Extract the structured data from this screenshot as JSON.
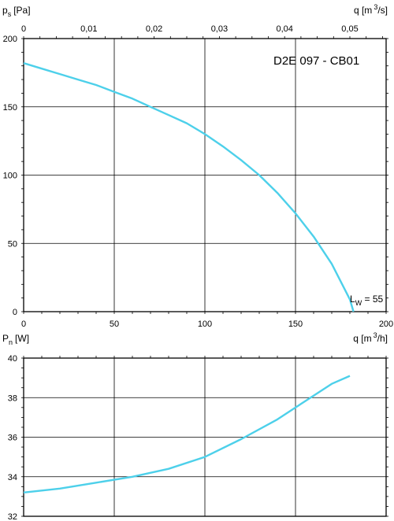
{
  "chart_data": [
    {
      "type": "line",
      "title": "D2E 097 - CB01",
      "ylabel": "p",
      "ylabel_sub": "s",
      "ylabel_unit": "[Pa]",
      "xlabel": "q [m",
      "xlabel_sup": "3",
      "xlabel_unit": "/h]",
      "top_xlabel": "q [m",
      "top_xlabel_sup": "3",
      "top_xlabel_unit": "/s]",
      "xlim": [
        0,
        200
      ],
      "ylim": [
        0,
        200
      ],
      "xticks": [
        "0",
        "50",
        "100",
        "150",
        "200"
      ],
      "yticks": [
        "0",
        "50",
        "100",
        "150",
        "200"
      ],
      "top_xticks": [
        "0",
        "0,01",
        "0,02",
        "0,03",
        "0,04",
        "0,05"
      ],
      "annotation": {
        "text": "L",
        "sub": "W",
        "rest": " = 55"
      },
      "line_color": "#4dd0ea",
      "grid": true,
      "series": [
        {
          "x": [
            0,
            10,
            20,
            30,
            40,
            50,
            60,
            70,
            80,
            90,
            100,
            110,
            120,
            130,
            140,
            150,
            160,
            170,
            180,
            182
          ],
          "y": [
            182,
            178,
            174,
            170,
            166,
            161,
            156,
            150,
            144,
            138,
            130,
            121,
            111,
            100,
            87,
            72,
            55,
            35,
            9,
            0
          ]
        }
      ]
    },
    {
      "type": "line",
      "ylabel": "P",
      "ylabel_sub": "n",
      "ylabel_unit": "[W]",
      "xlim": [
        0,
        200
      ],
      "ylim": [
        32,
        40
      ],
      "yticks": [
        "32",
        "34",
        "36",
        "38",
        "40"
      ],
      "line_color": "#4dd0ea",
      "grid": true,
      "series": [
        {
          "x": [
            0,
            20,
            40,
            60,
            80,
            100,
            120,
            140,
            160,
            170,
            180
          ],
          "y": [
            33.2,
            33.4,
            33.7,
            34.0,
            34.4,
            35.0,
            35.9,
            36.9,
            38.1,
            38.7,
            39.1
          ]
        }
      ]
    }
  ]
}
